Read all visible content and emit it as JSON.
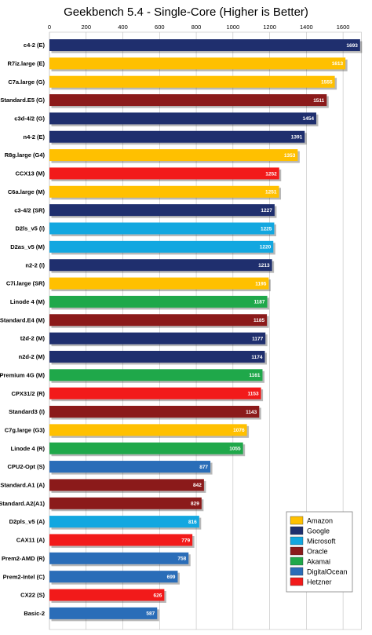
{
  "chart_data": {
    "type": "bar",
    "orientation": "horizontal",
    "title": "Geekbench 5.4 - Single-Core (Higher is Better)",
    "xlim": [
      0,
      1700
    ],
    "ticks": [
      "0",
      "200",
      "400",
      "600",
      "800",
      "1000",
      "1200",
      "1400",
      "1600"
    ],
    "tick_values": [
      0,
      200,
      400,
      600,
      800,
      1000,
      1200,
      1400,
      1600
    ],
    "grid": true,
    "legend_position": "bottom-right",
    "categories": [
      "c4-2 (E)",
      "R7iz.large (E)",
      "C7a.large (G)",
      "Standard.E5 (G)",
      "c3d-4/2 (G)",
      "n4-2 (E)",
      "R8g.large (G4)",
      "CCX13 (M)",
      "C6a.large (M)",
      "c3-4/2 (SR)",
      "D2ls_v5 (I)",
      "D2as_v5 (M)",
      "n2-2 (I)",
      "C7i.large (SR)",
      "Linode 4 (M)",
      "Standard.E4 (M)",
      "t2d-2 (M)",
      "n2d-2 (M)",
      "Premium 4G (M)",
      "CPX31/2 (R)",
      "Standard3 (I)",
      "C7g.large (G3)",
      "Linode 4 (R)",
      "CPU2-Opt (S)",
      "Standard.A1 (A)",
      "Standard.A2(A1)",
      "D2pls_v5 (A)",
      "CAX11 (A)",
      "Prem2-AMD (R)",
      "Prem2-Intel (C)",
      "CX22 (S)",
      "Basic-2"
    ],
    "values": [
      1693,
      1613,
      1555,
      1511,
      1454,
      1391,
      1353,
      1252,
      1251,
      1227,
      1225,
      1220,
      1213,
      1195,
      1187,
      1185,
      1177,
      1174,
      1161,
      1153,
      1143,
      1076,
      1055,
      877,
      842,
      829,
      816,
      779,
      758,
      699,
      626,
      587
    ],
    "providers": [
      "Google",
      "Amazon",
      "Amazon",
      "Oracle",
      "Google",
      "Google",
      "Amazon",
      "Hetzner",
      "Amazon",
      "Google",
      "Microsoft",
      "Microsoft",
      "Google",
      "Amazon",
      "Akamai",
      "Oracle",
      "Google",
      "Google",
      "Akamai",
      "Hetzner",
      "Oracle",
      "Amazon",
      "Akamai",
      "DigitalOcean",
      "Oracle",
      "Oracle",
      "Microsoft",
      "Hetzner",
      "DigitalOcean",
      "DigitalOcean",
      "Hetzner",
      "DigitalOcean"
    ],
    "legend": [
      {
        "name": "Amazon",
        "color": "#FFC000"
      },
      {
        "name": "Google",
        "color": "#1F2F6E"
      },
      {
        "name": "Microsoft",
        "color": "#12A7E0"
      },
      {
        "name": "Oracle",
        "color": "#8B1A1A"
      },
      {
        "name": "Akamai",
        "color": "#1FA84A"
      },
      {
        "name": "DigitalOcean",
        "color": "#2A6DB8"
      },
      {
        "name": "Hetzner",
        "color": "#F21A1A"
      }
    ]
  }
}
